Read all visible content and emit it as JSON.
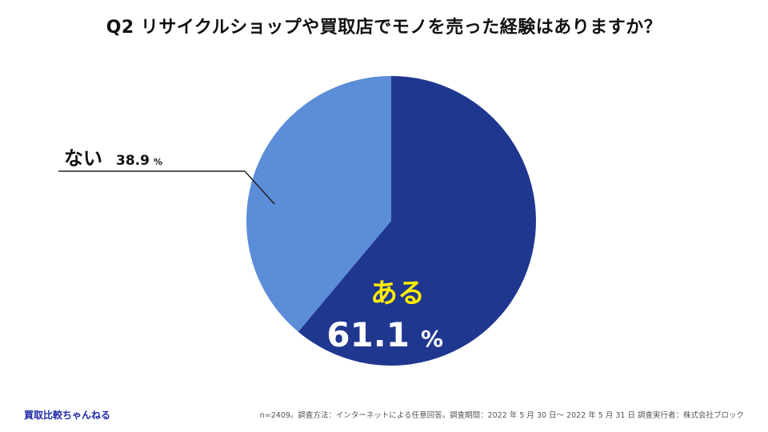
{
  "title": "Q2 リサイクルショップや買取店でモノを売った経験はありますか？",
  "chart_data": {
    "type": "pie",
    "title": "Q2 リサイクルショップや買取店でモノを売った経験はありますか？",
    "slices": [
      {
        "label": "ある",
        "value": 61.1,
        "display": "61.1",
        "unit": "%",
        "color": "#1f378f",
        "label_color": "#ffee00"
      },
      {
        "label": "ない",
        "value": 38.9,
        "display": "38.9",
        "unit": "%",
        "color": "#5b8dd8",
        "label_color": "#111111"
      }
    ],
    "start": "12 o'clock",
    "direction": "clockwise"
  },
  "footer": {
    "brand": "買取比較ちゃんねる",
    "note": "n=2409。調査方法：インターネットによる任意回答。調査期間：2022 年 5 月 30 日～ 2022 年 5 月 31 日 調査実行者：株式会社ブロック"
  }
}
